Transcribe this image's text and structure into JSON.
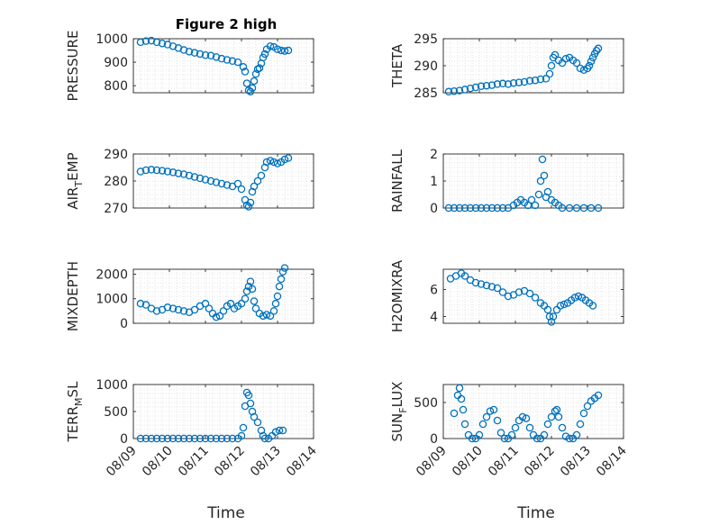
{
  "figure": {
    "title": "Figure 2 high",
    "xlabel": "Time",
    "date_ticks": [
      "08/09",
      "08/10",
      "08/11",
      "08/12",
      "08/13",
      "08/14"
    ],
    "marker_color": "#0072BD",
    "axis_color": "#262626",
    "grid_color": "#dcdcdc"
  },
  "chart_data": [
    {
      "type": "scatter",
      "ylabel": "PRESSURE",
      "xlim": [
        "08/09",
        "08/14"
      ],
      "ylim": [
        770,
        1000
      ],
      "yticks": [
        "1000",
        "900",
        "800"
      ],
      "ytick_values": [
        1000,
        900,
        800
      ],
      "grid": true,
      "points": [
        [
          0.2,
          985
        ],
        [
          0.35,
          990
        ],
        [
          0.5,
          992
        ],
        [
          0.65,
          985
        ],
        [
          0.8,
          980
        ],
        [
          0.95,
          975
        ],
        [
          1.1,
          968
        ],
        [
          1.25,
          960
        ],
        [
          1.4,
          952
        ],
        [
          1.55,
          945
        ],
        [
          1.7,
          940
        ],
        [
          1.85,
          935
        ],
        [
          2.0,
          930
        ],
        [
          2.15,
          928
        ],
        [
          2.3,
          922
        ],
        [
          2.45,
          915
        ],
        [
          2.6,
          910
        ],
        [
          2.75,
          905
        ],
        [
          2.9,
          900
        ],
        [
          3.05,
          880
        ],
        [
          3.1,
          860
        ],
        [
          3.15,
          810
        ],
        [
          3.2,
          780
        ],
        [
          3.25,
          775
        ],
        [
          3.3,
          790
        ],
        [
          3.35,
          820
        ],
        [
          3.4,
          850
        ],
        [
          3.45,
          870
        ],
        [
          3.5,
          875
        ],
        [
          3.55,
          895
        ],
        [
          3.6,
          920
        ],
        [
          3.65,
          935
        ],
        [
          3.7,
          955
        ],
        [
          3.8,
          968
        ],
        [
          3.9,
          965
        ],
        [
          4.0,
          955
        ],
        [
          4.1,
          950
        ],
        [
          4.2,
          948
        ],
        [
          4.3,
          950
        ]
      ]
    },
    {
      "type": "scatter",
      "ylabel": "THETA",
      "xlim": [
        "08/09",
        "08/14"
      ],
      "ylim": [
        285,
        295
      ],
      "yticks": [
        "295",
        "290",
        "285"
      ],
      "ytick_values": [
        295,
        290,
        285
      ],
      "grid": true,
      "points": [
        [
          0.15,
          285.2
        ],
        [
          0.3,
          285.3
        ],
        [
          0.45,
          285.4
        ],
        [
          0.6,
          285.6
        ],
        [
          0.75,
          285.8
        ],
        [
          0.9,
          286.0
        ],
        [
          1.05,
          286.2
        ],
        [
          1.2,
          286.3
        ],
        [
          1.35,
          286.4
        ],
        [
          1.5,
          286.6
        ],
        [
          1.65,
          286.7
        ],
        [
          1.8,
          286.6
        ],
        [
          1.95,
          286.8
        ],
        [
          2.1,
          286.9
        ],
        [
          2.25,
          287.0
        ],
        [
          2.4,
          287.2
        ],
        [
          2.55,
          287.3
        ],
        [
          2.7,
          287.5
        ],
        [
          2.85,
          287.6
        ],
        [
          2.95,
          288.5
        ],
        [
          3.0,
          290.0
        ],
        [
          3.05,
          291.5
        ],
        [
          3.1,
          292.0
        ],
        [
          3.2,
          291.0
        ],
        [
          3.3,
          290.5
        ],
        [
          3.4,
          291.3
        ],
        [
          3.5,
          291.5
        ],
        [
          3.6,
          291.0
        ],
        [
          3.7,
          290.5
        ],
        [
          3.8,
          289.5
        ],
        [
          3.9,
          289.2
        ],
        [
          4.0,
          289.5
        ],
        [
          4.05,
          290.0
        ],
        [
          4.1,
          290.8
        ],
        [
          4.15,
          291.5
        ],
        [
          4.2,
          292.2
        ],
        [
          4.25,
          292.8
        ],
        [
          4.3,
          293.2
        ]
      ]
    },
    {
      "type": "scatter",
      "ylabel_main": "AIR",
      "ylabel_sub": "T",
      "ylabel_rest": "EMP",
      "xlim": [
        "08/09",
        "08/14"
      ],
      "ylim": [
        270,
        290
      ],
      "yticks": [
        "290",
        "280",
        "270"
      ],
      "ytick_values": [
        290,
        280,
        270
      ],
      "grid": true,
      "points": [
        [
          0.2,
          283.5
        ],
        [
          0.35,
          284.0
        ],
        [
          0.5,
          284.2
        ],
        [
          0.65,
          284.0
        ],
        [
          0.8,
          283.8
        ],
        [
          0.95,
          283.5
        ],
        [
          1.1,
          283.2
        ],
        [
          1.25,
          282.8
        ],
        [
          1.4,
          282.5
        ],
        [
          1.55,
          282.0
        ],
        [
          1.7,
          281.5
        ],
        [
          1.85,
          281.0
        ],
        [
          2.0,
          280.5
        ],
        [
          2.15,
          280.0
        ],
        [
          2.3,
          279.5
        ],
        [
          2.45,
          279.0
        ],
        [
          2.6,
          278.5
        ],
        [
          2.75,
          278.0
        ],
        [
          2.9,
          279.0
        ],
        [
          3.0,
          277.0
        ],
        [
          3.1,
          273.0
        ],
        [
          3.15,
          271.0
        ],
        [
          3.2,
          270.5
        ],
        [
          3.25,
          272.0
        ],
        [
          3.3,
          276.0
        ],
        [
          3.35,
          278.0
        ],
        [
          3.45,
          280.0
        ],
        [
          3.55,
          282.0
        ],
        [
          3.65,
          285.0
        ],
        [
          3.7,
          287.0
        ],
        [
          3.8,
          287.5
        ],
        [
          3.9,
          287.0
        ],
        [
          4.0,
          286.5
        ],
        [
          4.1,
          287.0
        ],
        [
          4.2,
          288.0
        ],
        [
          4.3,
          288.5
        ]
      ]
    },
    {
      "type": "scatter",
      "ylabel": "RAINFALL",
      "xlim": [
        "08/09",
        "08/14"
      ],
      "ylim": [
        0,
        2
      ],
      "yticks": [
        "2",
        "1",
        "0"
      ],
      "ytick_values": [
        2,
        1,
        0
      ],
      "grid": true,
      "points": [
        [
          0.15,
          0
        ],
        [
          0.3,
          0
        ],
        [
          0.45,
          0
        ],
        [
          0.6,
          0
        ],
        [
          0.75,
          0
        ],
        [
          0.9,
          0
        ],
        [
          1.05,
          0
        ],
        [
          1.2,
          0
        ],
        [
          1.35,
          0
        ],
        [
          1.5,
          0
        ],
        [
          1.65,
          0
        ],
        [
          1.8,
          0
        ],
        [
          1.95,
          0.1
        ],
        [
          2.05,
          0.2
        ],
        [
          2.15,
          0.3
        ],
        [
          2.25,
          0.2
        ],
        [
          2.35,
          0.1
        ],
        [
          2.45,
          0.3
        ],
        [
          2.55,
          0.1
        ],
        [
          2.65,
          0.5
        ],
        [
          2.7,
          1.0
        ],
        [
          2.75,
          1.8
        ],
        [
          2.8,
          1.2
        ],
        [
          2.85,
          0.4
        ],
        [
          2.9,
          0.6
        ],
        [
          3.0,
          0.3
        ],
        [
          3.1,
          0.2
        ],
        [
          3.2,
          0.1
        ],
        [
          3.3,
          0
        ],
        [
          3.5,
          0
        ],
        [
          3.7,
          0
        ],
        [
          3.9,
          0
        ],
        [
          4.1,
          0
        ],
        [
          4.3,
          0
        ]
      ]
    },
    {
      "type": "scatter",
      "ylabel": "MIXDEPTH",
      "xlim": [
        "08/09",
        "08/14"
      ],
      "ylim": [
        0,
        2200
      ],
      "yticks": [
        "2000",
        "1000",
        "0"
      ],
      "ytick_values": [
        2000,
        1000,
        0
      ],
      "grid": true,
      "points": [
        [
          0.2,
          800
        ],
        [
          0.35,
          750
        ],
        [
          0.5,
          600
        ],
        [
          0.65,
          500
        ],
        [
          0.8,
          550
        ],
        [
          0.95,
          650
        ],
        [
          1.1,
          600
        ],
        [
          1.25,
          550
        ],
        [
          1.4,
          500
        ],
        [
          1.55,
          450
        ],
        [
          1.7,
          550
        ],
        [
          1.85,
          700
        ],
        [
          2.0,
          800
        ],
        [
          2.1,
          600
        ],
        [
          2.2,
          400
        ],
        [
          2.3,
          250
        ],
        [
          2.4,
          300
        ],
        [
          2.5,
          500
        ],
        [
          2.6,
          700
        ],
        [
          2.7,
          800
        ],
        [
          2.8,
          600
        ],
        [
          2.9,
          700
        ],
        [
          3.0,
          800
        ],
        [
          3.1,
          1000
        ],
        [
          3.15,
          1300
        ],
        [
          3.2,
          1500
        ],
        [
          3.25,
          1700
        ],
        [
          3.3,
          1400
        ],
        [
          3.35,
          900
        ],
        [
          3.4,
          600
        ],
        [
          3.5,
          400
        ],
        [
          3.6,
          300
        ],
        [
          3.7,
          350
        ],
        [
          3.8,
          300
        ],
        [
          3.9,
          500
        ],
        [
          3.95,
          800
        ],
        [
          4.0,
          1100
        ],
        [
          4.05,
          1500
        ],
        [
          4.1,
          1800
        ],
        [
          4.15,
          2100
        ],
        [
          4.2,
          2250
        ]
      ]
    },
    {
      "type": "scatter",
      "ylabel": "H2OMIXRA",
      "xlim": [
        "08/09",
        "08/14"
      ],
      "ylim": [
        3.5,
        7.5
      ],
      "yticks": [
        "6",
        "4"
      ],
      "ytick_values": [
        6,
        4
      ],
      "grid": true,
      "points": [
        [
          0.2,
          6.8
        ],
        [
          0.35,
          7.0
        ],
        [
          0.5,
          7.2
        ],
        [
          0.6,
          7.0
        ],
        [
          0.75,
          6.7
        ],
        [
          0.9,
          6.5
        ],
        [
          1.05,
          6.4
        ],
        [
          1.2,
          6.3
        ],
        [
          1.35,
          6.2
        ],
        [
          1.5,
          6.1
        ],
        [
          1.65,
          5.8
        ],
        [
          1.8,
          5.5
        ],
        [
          1.95,
          5.6
        ],
        [
          2.1,
          5.8
        ],
        [
          2.25,
          5.9
        ],
        [
          2.4,
          5.7
        ],
        [
          2.55,
          5.4
        ],
        [
          2.7,
          5.0
        ],
        [
          2.8,
          4.8
        ],
        [
          2.9,
          4.5
        ],
        [
          2.95,
          4.0
        ],
        [
          3.0,
          3.6
        ],
        [
          3.05,
          4.0
        ],
        [
          3.15,
          4.5
        ],
        [
          3.25,
          4.8
        ],
        [
          3.35,
          4.9
        ],
        [
          3.45,
          5.0
        ],
        [
          3.55,
          5.2
        ],
        [
          3.65,
          5.4
        ],
        [
          3.75,
          5.5
        ],
        [
          3.85,
          5.4
        ],
        [
          3.95,
          5.2
        ],
        [
          4.05,
          5.0
        ],
        [
          4.15,
          4.8
        ]
      ]
    },
    {
      "type": "scatter",
      "ylabel_main": "TERR",
      "ylabel_sub": "M",
      "ylabel_rest": "SL",
      "xlim": [
        "08/09",
        "08/14"
      ],
      "ylim": [
        0,
        1000
      ],
      "yticks": [
        "1000",
        "500",
        "0"
      ],
      "ytick_values": [
        1000,
        500,
        0
      ],
      "grid": true,
      "points": [
        [
          0.2,
          0
        ],
        [
          0.35,
          0
        ],
        [
          0.5,
          0
        ],
        [
          0.65,
          0
        ],
        [
          0.8,
          0
        ],
        [
          0.95,
          0
        ],
        [
          1.1,
          0
        ],
        [
          1.25,
          0
        ],
        [
          1.4,
          0
        ],
        [
          1.55,
          0
        ],
        [
          1.7,
          0
        ],
        [
          1.85,
          0
        ],
        [
          2.0,
          0
        ],
        [
          2.15,
          0
        ],
        [
          2.3,
          0
        ],
        [
          2.45,
          0
        ],
        [
          2.6,
          0
        ],
        [
          2.75,
          0
        ],
        [
          2.9,
          0
        ],
        [
          3.0,
          50
        ],
        [
          3.05,
          200
        ],
        [
          3.1,
          600
        ],
        [
          3.15,
          850
        ],
        [
          3.2,
          800
        ],
        [
          3.25,
          650
        ],
        [
          3.3,
          500
        ],
        [
          3.35,
          400
        ],
        [
          3.45,
          300
        ],
        [
          3.55,
          150
        ],
        [
          3.6,
          50
        ],
        [
          3.65,
          0
        ],
        [
          3.75,
          0
        ],
        [
          3.85,
          50
        ],
        [
          3.95,
          120
        ],
        [
          4.05,
          150
        ],
        [
          4.15,
          150
        ]
      ]
    },
    {
      "type": "scatter",
      "ylabel_main": "SUN",
      "ylabel_sub": "F",
      "ylabel_rest": "LUX",
      "xlim": [
        "08/09",
        "08/14"
      ],
      "ylim": [
        0,
        750
      ],
      "yticks": [
        "500",
        "0"
      ],
      "ytick_values": [
        500,
        0
      ],
      "grid": true,
      "points": [
        [
          0.3,
          350
        ],
        [
          0.4,
          600
        ],
        [
          0.45,
          700
        ],
        [
          0.5,
          550
        ],
        [
          0.55,
          400
        ],
        [
          0.6,
          200
        ],
        [
          0.7,
          50
        ],
        [
          0.8,
          0
        ],
        [
          0.9,
          0
        ],
        [
          1.0,
          50
        ],
        [
          1.1,
          200
        ],
        [
          1.2,
          300
        ],
        [
          1.3,
          380
        ],
        [
          1.4,
          400
        ],
        [
          1.5,
          250
        ],
        [
          1.6,
          80
        ],
        [
          1.7,
          0
        ],
        [
          1.8,
          0
        ],
        [
          1.9,
          50
        ],
        [
          2.0,
          150
        ],
        [
          2.1,
          250
        ],
        [
          2.2,
          300
        ],
        [
          2.3,
          280
        ],
        [
          2.4,
          150
        ],
        [
          2.5,
          50
        ],
        [
          2.6,
          0
        ],
        [
          2.7,
          0
        ],
        [
          2.8,
          50
        ],
        [
          2.9,
          200
        ],
        [
          3.0,
          300
        ],
        [
          3.1,
          380
        ],
        [
          3.15,
          400
        ],
        [
          3.2,
          300
        ],
        [
          3.3,
          150
        ],
        [
          3.4,
          30
        ],
        [
          3.5,
          0
        ],
        [
          3.6,
          0
        ],
        [
          3.7,
          50
        ],
        [
          3.8,
          200
        ],
        [
          3.9,
          350
        ],
        [
          4.0,
          450
        ],
        [
          4.1,
          520
        ],
        [
          4.2,
          560
        ],
        [
          4.3,
          600
        ]
      ]
    }
  ]
}
